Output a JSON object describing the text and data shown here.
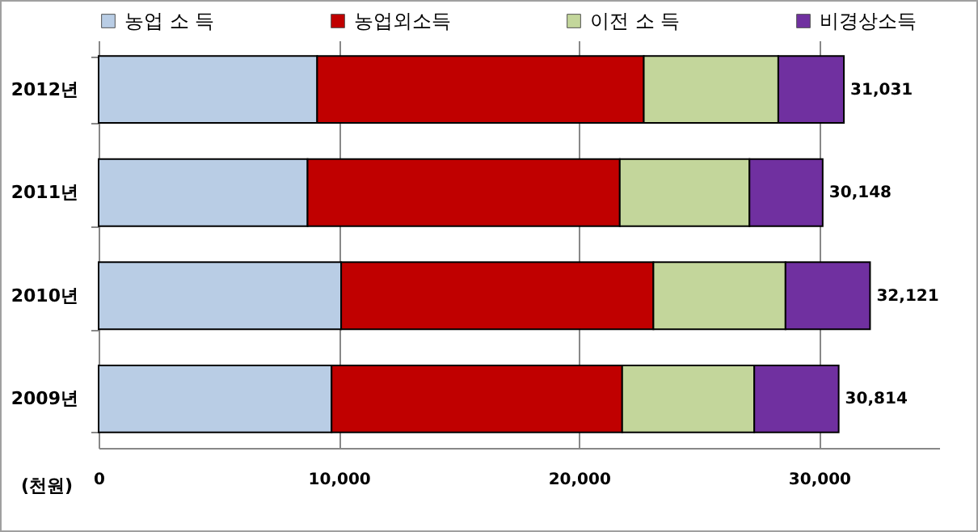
{
  "chart_data": {
    "type": "bar",
    "orientation": "horizontal",
    "stacked": true,
    "categories": [
      "2012년",
      "2011년",
      "2010년",
      "2009년"
    ],
    "series": [
      {
        "name": "농업 소 득",
        "color": "#b9cde5",
        "values": [
          9100,
          8700,
          10100,
          9700
        ]
      },
      {
        "name": "농업외소득",
        "color": "#c00000",
        "values": [
          13600,
          13000,
          13000,
          12100
        ]
      },
      {
        "name": "이전 소 득",
        "color": "#c3d69b",
        "values": [
          5600,
          5400,
          5500,
          5500
        ]
      },
      {
        "name": "비경상소득",
        "color": "#7030a0",
        "values": [
          2731,
          3048,
          3521,
          3514
        ]
      }
    ],
    "totals": [
      "31,031",
      "30,148",
      "32,121",
      "30,814"
    ],
    "xlim": [
      0,
      35000
    ],
    "xticks": [
      {
        "value": 0,
        "label": "0"
      },
      {
        "value": 10000,
        "label": "10,000"
      },
      {
        "value": 20000,
        "label": "20,000"
      },
      {
        "value": 30000,
        "label": "30,000"
      }
    ],
    "grid": "x",
    "legend": "top",
    "annotations": [
      "(천원)"
    ]
  }
}
